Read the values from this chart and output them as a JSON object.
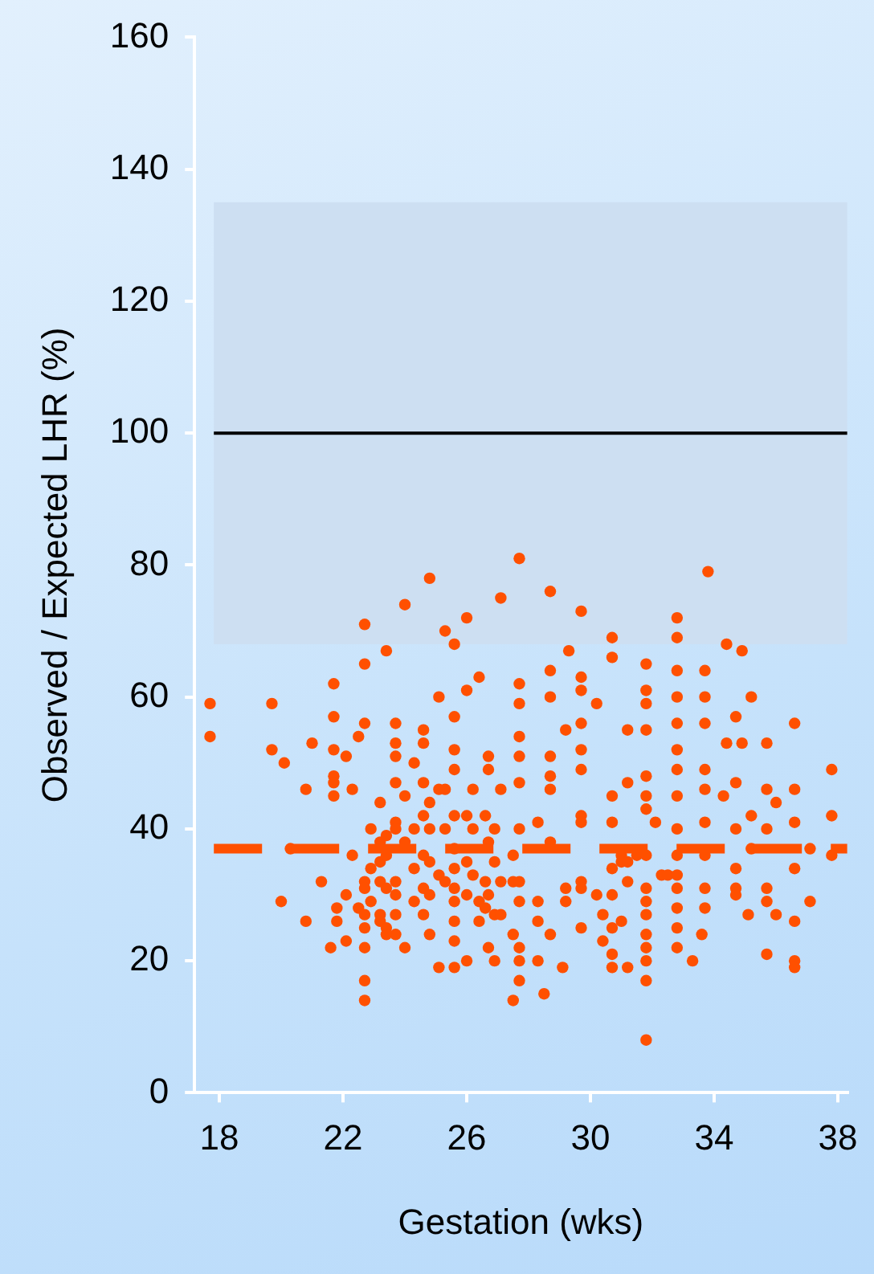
{
  "chart_data": {
    "type": "scatter",
    "xlabel": "Gestation (wks)",
    "ylabel": "Observed / Expected LHR (%)",
    "xlim": [
      17.2,
      38.3
    ],
    "xticks": [
      18,
      22,
      26,
      30,
      34,
      38
    ],
    "ylim": [
      0,
      160
    ],
    "yticks": [
      0,
      20,
      40,
      60,
      80,
      100,
      120,
      140,
      160
    ],
    "marker": "circle",
    "legend": false,
    "series": [
      {
        "color": "#ff5000",
        "x": [
          17.7,
          17.7,
          19.7,
          19.7,
          20.1,
          20.0,
          20.3,
          20.8,
          20.8,
          21.0,
          21.3,
          21.6,
          21.7,
          21.7,
          21.7,
          21.7,
          21.7,
          21.7,
          21.8,
          21.8,
          22.1,
          22.1,
          22.1,
          22.3,
          22.3,
          22.5,
          22.5,
          22.7,
          22.7,
          22.7,
          22.7,
          22.7,
          22.7,
          22.7,
          22.7,
          22.7,
          22.7,
          22.9,
          22.9,
          22.9,
          23.2,
          23.2,
          23.2,
          23.2,
          23.2,
          23.2,
          23.4,
          23.4,
          23.4,
          23.4,
          23.4,
          23.4,
          23.7,
          23.7,
          23.7,
          23.7,
          23.7,
          23.7,
          23.7,
          23.7,
          23.7,
          23.7,
          24.0,
          24.0,
          24.0,
          24.0,
          24.3,
          24.3,
          24.3,
          24.3,
          24.6,
          24.6,
          24.6,
          24.6,
          24.6,
          24.6,
          24.6,
          24.8,
          24.8,
          24.8,
          24.8,
          24.8,
          24.8,
          25.1,
          25.1,
          25.1,
          25.1,
          25.3,
          25.3,
          25.3,
          25.3,
          25.6,
          25.6,
          25.6,
          25.6,
          25.6,
          25.6,
          25.6,
          25.6,
          25.6,
          25.6,
          25.6,
          25.6,
          26.0,
          26.0,
          26.0,
          26.0,
          26.0,
          26.0,
          26.2,
          26.2,
          26.2,
          26.4,
          26.4,
          26.4,
          26.6,
          26.6,
          26.6,
          26.7,
          26.7,
          26.7,
          26.7,
          26.7,
          26.9,
          26.9,
          26.9,
          26.9,
          27.1,
          27.1,
          27.1,
          27.1,
          27.5,
          27.5,
          27.5,
          27.5,
          27.7,
          27.7,
          27.7,
          27.7,
          27.7,
          27.7,
          27.7,
          27.7,
          27.7,
          27.7,
          27.7,
          27.7,
          28.3,
          28.3,
          28.3,
          28.3,
          28.5,
          28.7,
          28.7,
          28.7,
          28.7,
          28.7,
          28.7,
          28.7,
          28.7,
          29.1,
          29.2,
          29.2,
          29.2,
          29.3,
          29.7,
          29.7,
          29.7,
          29.7,
          29.7,
          29.7,
          29.7,
          29.7,
          29.7,
          29.7,
          29.7,
          30.2,
          30.2,
          30.4,
          30.4,
          30.7,
          30.7,
          30.7,
          30.7,
          30.7,
          30.7,
          30.7,
          30.7,
          30.7,
          31.0,
          31.0,
          31.0,
          31.2,
          31.2,
          31.2,
          31.2,
          31.2,
          31.5,
          31.8,
          31.8,
          31.8,
          31.8,
          31.8,
          31.8,
          31.8,
          31.8,
          31.8,
          31.8,
          31.8,
          31.8,
          31.8,
          31.8,
          31.8,
          31.8,
          32.1,
          32.3,
          32.5,
          32.8,
          32.8,
          32.8,
          32.8,
          32.8,
          32.8,
          32.8,
          32.8,
          32.8,
          32.8,
          32.8,
          32.8,
          32.8,
          32.8,
          32.8,
          33.3,
          33.6,
          33.7,
          33.7,
          33.7,
          33.7,
          33.7,
          33.7,
          33.7,
          33.7,
          33.7,
          33.8,
          34.3,
          34.4,
          34.4,
          34.7,
          34.7,
          34.7,
          34.7,
          34.7,
          34.7,
          34.9,
          34.9,
          35.1,
          35.2,
          35.2,
          35.2,
          35.7,
          35.7,
          35.7,
          35.7,
          35.7,
          35.7,
          36.0,
          36.0,
          36.6,
          36.6,
          36.6,
          36.6,
          36.6,
          36.6,
          36.6,
          37.1,
          37.1,
          37.8,
          37.8,
          37.8
        ],
        "values": [
          59,
          54,
          59,
          52,
          50,
          29,
          37,
          26,
          46,
          53,
          32,
          22,
          62,
          57,
          52,
          48,
          47,
          45,
          26,
          28,
          51,
          23,
          30,
          46,
          36,
          54,
          28,
          71,
          65,
          56,
          32,
          31,
          27,
          22,
          17,
          14,
          25,
          40,
          34,
          29,
          44,
          38,
          35,
          32,
          27,
          26,
          67,
          39,
          36,
          31,
          25,
          24,
          56,
          53,
          51,
          47,
          41,
          40,
          32,
          30,
          27,
          24,
          74,
          45,
          38,
          22,
          50,
          34,
          29,
          40,
          55,
          53,
          47,
          42,
          36,
          31,
          27,
          78,
          44,
          40,
          35,
          24,
          30,
          60,
          33,
          19,
          46,
          70,
          46,
          40,
          32,
          68,
          57,
          52,
          49,
          42,
          37,
          34,
          31,
          29,
          26,
          23,
          19,
          72,
          61,
          42,
          35,
          30,
          20,
          46,
          40,
          33,
          63,
          29,
          26,
          42,
          32,
          28,
          51,
          49,
          38,
          22,
          30,
          40,
          35,
          27,
          20,
          75,
          46,
          32,
          27,
          36,
          32,
          24,
          14,
          81,
          62,
          59,
          54,
          51,
          47,
          40,
          32,
          29,
          20,
          17,
          22,
          41,
          26,
          20,
          29,
          15,
          76,
          64,
          60,
          51,
          48,
          46,
          38,
          24,
          19,
          55,
          31,
          29,
          67,
          73,
          63,
          61,
          56,
          52,
          49,
          42,
          41,
          32,
          31,
          25,
          59,
          30,
          27,
          23,
          69,
          66,
          45,
          41,
          34,
          30,
          25,
          21,
          19,
          36,
          35,
          26,
          55,
          47,
          35,
          32,
          19,
          36,
          65,
          61,
          59,
          55,
          48,
          45,
          43,
          36,
          31,
          29,
          27,
          24,
          22,
          20,
          17,
          8,
          41,
          33,
          33,
          72,
          69,
          64,
          60,
          56,
          52,
          49,
          45,
          40,
          36,
          33,
          31,
          28,
          25,
          22,
          20,
          24,
          64,
          60,
          56,
          49,
          46,
          41,
          36,
          31,
          28,
          79,
          45,
          68,
          53,
          57,
          47,
          40,
          34,
          31,
          30,
          67,
          53,
          27,
          42,
          37,
          60,
          53,
          46,
          40,
          31,
          29,
          21,
          44,
          27,
          56,
          46,
          41,
          34,
          26,
          20,
          19,
          29,
          37,
          49,
          42,
          36
        ]
      }
    ],
    "bands": [
      {
        "axis": "y",
        "from": 68,
        "to": 135,
        "color": "#cddff2"
      }
    ],
    "ref_lines": [
      {
        "axis": "y",
        "value": 100,
        "color": "#000000",
        "line_style": "solid"
      },
      {
        "axis": "y",
        "value": 37,
        "color": "#ff5000",
        "line_style": "dashed"
      }
    ]
  }
}
